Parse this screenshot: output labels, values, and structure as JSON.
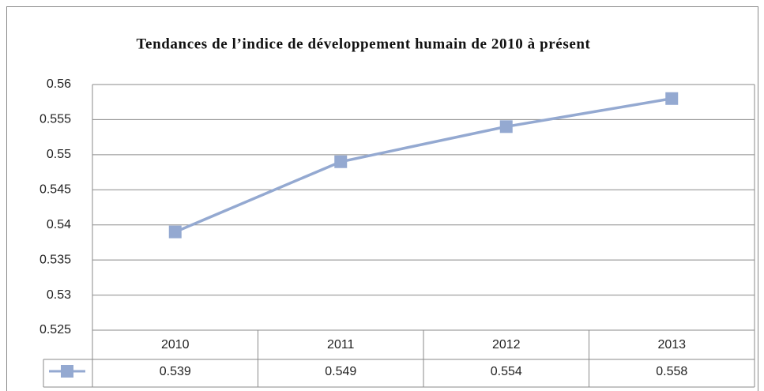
{
  "chart_data": {
    "type": "line",
    "title": "Tendances de l’indice de développement humain de 2010 à présent",
    "categories": [
      "2010",
      "2011",
      "2012",
      "2013"
    ],
    "values": [
      0.539,
      0.549,
      0.554,
      0.558
    ],
    "color": "#94a9d1",
    "ylim": [
      0.525,
      0.56
    ],
    "yticks": [
      0.525,
      0.53,
      0.535,
      0.54,
      0.545,
      0.55,
      0.555,
      0.56
    ],
    "grid": true
  }
}
